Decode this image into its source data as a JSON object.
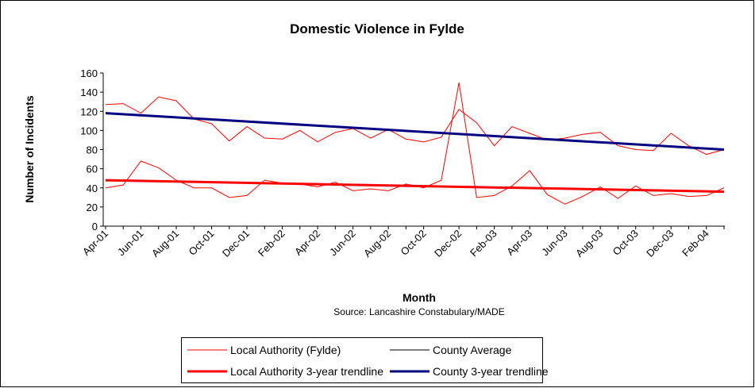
{
  "chart_data": {
    "type": "line",
    "title": "Domestic Violence in Fylde",
    "y_label": "Number of Incidents",
    "x_label": "Month",
    "source": "Source: Lancashire Constabulary/MADE",
    "categories": [
      "Apr-01",
      null,
      "Jun-01",
      null,
      "Aug-01",
      null,
      "Oct-01",
      null,
      "Dec-01",
      null,
      "Feb-02",
      null,
      "Apr-02",
      null,
      "Jun-02",
      null,
      "Aug-02",
      null,
      "Oct-02",
      null,
      "Dec-02",
      null,
      "Feb-03",
      null,
      "Apr-03",
      null,
      "Jun-03",
      null,
      "Aug-03",
      null,
      "Oct-03",
      null,
      "Dec-03",
      null,
      "Feb-04",
      null
    ],
    "series": [
      {
        "name": "Local Authority (Fylde)",
        "color": "#ff0000",
        "width": 1,
        "values": [
          40,
          43,
          68,
          61,
          48,
          40,
          40,
          30,
          32,
          48,
          45,
          44,
          41,
          46,
          37,
          39,
          37,
          44,
          40,
          48,
          150,
          30,
          32,
          42,
          58,
          33,
          23,
          31,
          41,
          29,
          42,
          32,
          34,
          31,
          32,
          40
        ]
      },
      {
        "name": "County Average",
        "color": "#ff0000",
        "legend_color": "#000000",
        "width": 1,
        "values": [
          127,
          128,
          118,
          135,
          131,
          112,
          107,
          89,
          104,
          92,
          91,
          100,
          88,
          98,
          102,
          92,
          101,
          91,
          88,
          93,
          122,
          108,
          84,
          104,
          97,
          90,
          92,
          96,
          98,
          84,
          80,
          79,
          97,
          84,
          75,
          80
        ]
      }
    ],
    "trendlines": [
      {
        "name": "Local Authority 3-year trendline",
        "color": "#ff0000",
        "width": 3,
        "start": 48,
        "end": 36
      },
      {
        "name": "County 3-year trendline",
        "color": "#000080",
        "width": 3,
        "start": 118,
        "end": 80
      }
    ],
    "ylim": [
      0,
      160
    ],
    "yticks": [
      0,
      20,
      40,
      60,
      80,
      100,
      120,
      140,
      160
    ],
    "grid": false
  }
}
